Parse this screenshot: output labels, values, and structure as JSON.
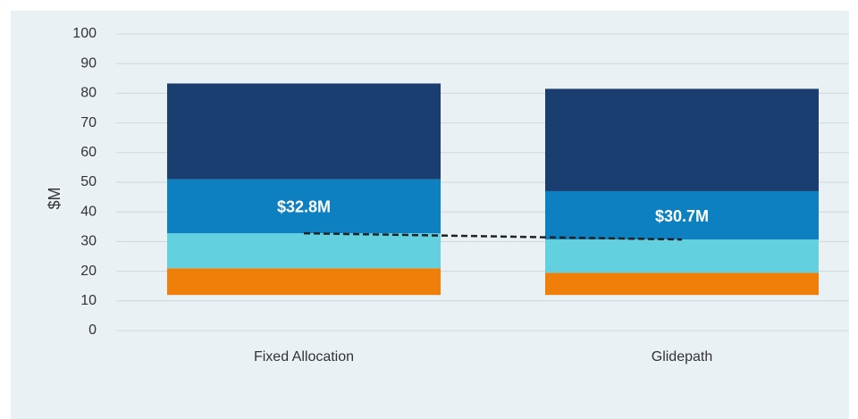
{
  "chart_data": {
    "type": "stacked-bar",
    "ylabel": "$M",
    "categories": [
      "Fixed Allocation",
      "Glidepath"
    ],
    "series": [
      {
        "color": "none",
        "values": [
          12,
          12
        ]
      },
      {
        "color": "#f07f09",
        "values": [
          9,
          7.5
        ]
      },
      {
        "color": "#62d0df",
        "values": [
          11.8,
          11.2
        ]
      },
      {
        "color": "#0c80c0",
        "values": [
          18.2,
          16.3
        ]
      },
      {
        "color": "#1a3e6f",
        "values": [
          32.3,
          34.5
        ]
      }
    ],
    "annotations": [
      {
        "text": "$32.8M",
        "value": 32.8
      },
      {
        "text": "$30.7M",
        "value": 30.7
      }
    ],
    "ylim": [
      0,
      100
    ],
    "yticks": [
      0,
      10,
      20,
      30,
      40,
      50,
      60,
      70,
      80,
      90,
      100
    ],
    "grid": true
  }
}
